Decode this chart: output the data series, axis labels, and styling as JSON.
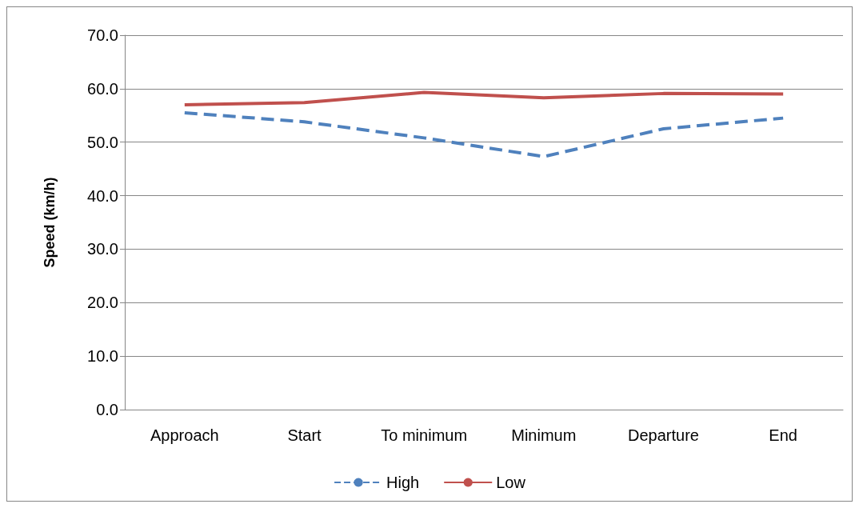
{
  "chart_data": {
    "type": "line",
    "ylabel": "Speed (km/h)",
    "categories": [
      "Approach",
      "Start",
      "To minimum",
      "Minimum",
      "Departure",
      "End"
    ],
    "series": [
      {
        "name": "High",
        "color": "#4f81bd",
        "line_style": "dashed",
        "values": [
          55.5,
          53.8,
          50.8,
          47.3,
          52.5,
          54.5
        ]
      },
      {
        "name": "Low",
        "color": "#c0504d",
        "line_style": "solid",
        "values": [
          57.0,
          57.4,
          59.3,
          58.3,
          59.1,
          59.0
        ]
      }
    ],
    "ylim": [
      0,
      70
    ],
    "yticks": [
      {
        "value": 0,
        "label": "0.0"
      },
      {
        "value": 10,
        "label": "10.0"
      },
      {
        "value": 20,
        "label": "20.0"
      },
      {
        "value": 30,
        "label": "30.0"
      },
      {
        "value": 40,
        "label": "40.0"
      },
      {
        "value": 50,
        "label": "50.0"
      },
      {
        "value": 60,
        "label": "60.0"
      },
      {
        "value": 70,
        "label": "70.0"
      }
    ],
    "grid": "y",
    "legend": "bottom",
    "marker": "none"
  }
}
